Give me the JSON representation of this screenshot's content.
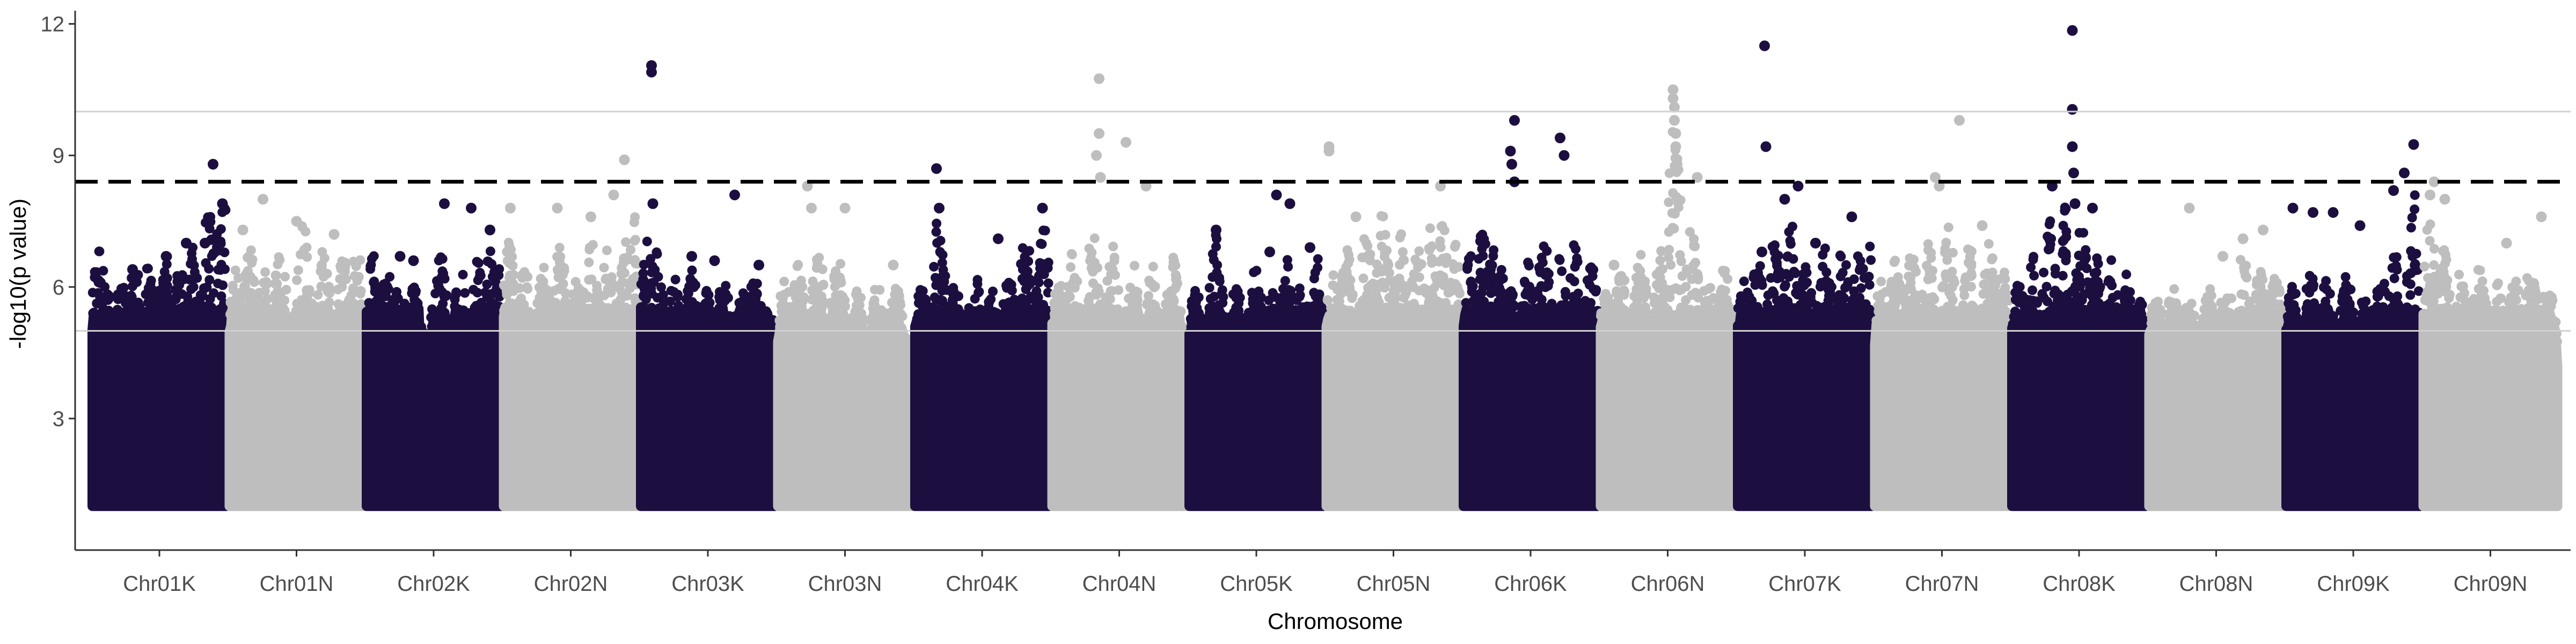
{
  "chart_data": {
    "type": "scatter",
    "subtype": "manhattan",
    "title": "",
    "xlabel": "Chromosome",
    "ylabel": "-log10(p value)",
    "ylim": [
      0,
      12.3
    ],
    "yticks": [
      3,
      6,
      9,
      12
    ],
    "grid": false,
    "legend": "none",
    "colors": {
      "odd": "#1c0f40",
      "even": "#bebebe",
      "threshold_line": "#000000",
      "reference_line": "#d0d0d0",
      "axis": "#333333"
    },
    "thresholds": [
      {
        "name": "significance",
        "y": 8.4,
        "style": "dashed"
      },
      {
        "name": "upper",
        "y": 10.0,
        "style": "solid"
      },
      {
        "name": "lower",
        "y": 5.0,
        "style": "solid"
      }
    ],
    "base_y_min": 1.0,
    "categories": [
      "Chr01K",
      "Chr01N",
      "Chr02K",
      "Chr02N",
      "Chr03K",
      "Chr03N",
      "Chr04K",
      "Chr04N",
      "Chr05K",
      "Chr05N",
      "Chr06K",
      "Chr06N",
      "Chr07K",
      "Chr07N",
      "Chr08K",
      "Chr08N",
      "Chr09K",
      "Chr09N"
    ],
    "series": [
      {
        "chromosome": "Chr01K",
        "color": "odd",
        "peaks": [
          [
            0.05,
            6.9
          ],
          [
            0.12,
            5.9
          ],
          [
            0.22,
            6.2
          ],
          [
            0.32,
            6.6
          ],
          [
            0.42,
            6.5
          ],
          [
            0.55,
            6.9
          ],
          [
            0.66,
            6.6
          ],
          [
            0.76,
            7.0
          ],
          [
            0.86,
            8.1
          ],
          [
            0.92,
            7.3
          ],
          [
            0.98,
            8.3
          ]
        ],
        "outliers": [
          [
            0.06,
            6.1
          ],
          [
            0.12,
            5.8
          ],
          [
            0.3,
            6.4
          ],
          [
            0.46,
            5.9
          ],
          [
            0.55,
            6.7
          ],
          [
            0.7,
            7.0
          ],
          [
            0.84,
            7.0
          ],
          [
            0.9,
            8.8
          ],
          [
            0.97,
            7.9
          ]
        ]
      },
      {
        "chromosome": "Chr01N",
        "color": "even",
        "peaks": [
          [
            0.05,
            6.4
          ],
          [
            0.15,
            7.0
          ],
          [
            0.25,
            6.5
          ],
          [
            0.38,
            6.9
          ],
          [
            0.55,
            7.5
          ],
          [
            0.7,
            6.9
          ],
          [
            0.85,
            6.8
          ],
          [
            0.95,
            7.0
          ]
        ],
        "outliers": [
          [
            0.1,
            7.3
          ],
          [
            0.25,
            8.0
          ],
          [
            0.5,
            7.5
          ],
          [
            0.78,
            7.2
          ]
        ]
      },
      {
        "chromosome": "Chr02K",
        "color": "odd",
        "peaks": [
          [
            0.05,
            6.8
          ],
          [
            0.15,
            6.5
          ],
          [
            0.25,
            6.4
          ],
          [
            0.35,
            6.3
          ],
          [
            0.55,
            7.0
          ],
          [
            0.7,
            6.5
          ],
          [
            0.82,
            6.7
          ],
          [
            0.92,
            7.0
          ],
          [
            0.98,
            6.5
          ]
        ],
        "outliers": [
          [
            0.25,
            6.7
          ],
          [
            0.35,
            6.6
          ],
          [
            0.58,
            7.9
          ],
          [
            0.78,
            7.8
          ],
          [
            0.92,
            7.3
          ]
        ]
      },
      {
        "chromosome": "Chr02N",
        "color": "even",
        "peaks": [
          [
            0.05,
            7.3
          ],
          [
            0.15,
            6.6
          ],
          [
            0.3,
            6.5
          ],
          [
            0.42,
            7.0
          ],
          [
            0.55,
            6.4
          ],
          [
            0.65,
            7.2
          ],
          [
            0.78,
            7.1
          ],
          [
            0.9,
            7.2
          ],
          [
            0.98,
            7.6
          ]
        ],
        "outliers": [
          [
            0.05,
            7.8
          ],
          [
            0.4,
            7.8
          ],
          [
            0.65,
            7.6
          ],
          [
            0.82,
            8.1
          ],
          [
            0.9,
            8.9
          ]
        ]
      },
      {
        "chromosome": "Chr03K",
        "color": "odd",
        "peaks": [
          [
            0.05,
            7.3
          ],
          [
            0.12,
            6.8
          ],
          [
            0.25,
            6.2
          ],
          [
            0.38,
            6.4
          ],
          [
            0.5,
            6.0
          ],
          [
            0.62,
            6.3
          ],
          [
            0.75,
            6.0
          ],
          [
            0.85,
            6.3
          ],
          [
            0.95,
            5.8
          ]
        ],
        "outliers": [
          [
            0.08,
            11.05
          ],
          [
            0.08,
            10.9
          ],
          [
            0.09,
            7.9
          ],
          [
            0.38,
            6.7
          ],
          [
            0.55,
            6.6
          ],
          [
            0.7,
            8.1
          ],
          [
            0.88,
            6.5
          ]
        ]
      },
      {
        "chromosome": "Chr03N",
        "color": "even",
        "peaks": [
          [
            0.05,
            6.3
          ],
          [
            0.15,
            6.6
          ],
          [
            0.3,
            7.0
          ],
          [
            0.45,
            6.8
          ],
          [
            0.6,
            6.0
          ],
          [
            0.75,
            6.3
          ],
          [
            0.88,
            6.1
          ]
        ],
        "outliers": [
          [
            0.22,
            8.3
          ],
          [
            0.25,
            7.8
          ],
          [
            0.5,
            7.8
          ],
          [
            0.86,
            6.5
          ]
        ]
      },
      {
        "chromosome": "Chr04K",
        "color": "odd",
        "peaks": [
          [
            0.05,
            6.0
          ],
          [
            0.18,
            7.8
          ],
          [
            0.3,
            6.1
          ],
          [
            0.45,
            6.3
          ],
          [
            0.58,
            6.0
          ],
          [
            0.7,
            6.3
          ],
          [
            0.82,
            7.5
          ],
          [
            0.96,
            7.8
          ]
        ],
        "outliers": [
          [
            0.16,
            8.7
          ],
          [
            0.18,
            7.8
          ],
          [
            0.62,
            7.1
          ],
          [
            0.95,
            7.8
          ]
        ]
      },
      {
        "chromosome": "Chr04N",
        "color": "even",
        "peaks": [
          [
            0.05,
            6.2
          ],
          [
            0.15,
            6.8
          ],
          [
            0.3,
            7.3
          ],
          [
            0.45,
            7.0
          ],
          [
            0.6,
            6.8
          ],
          [
            0.75,
            6.5
          ],
          [
            0.9,
            6.7
          ]
        ],
        "outliers": [
          [
            0.35,
            10.75
          ],
          [
            0.35,
            9.5
          ],
          [
            0.33,
            9.0
          ],
          [
            0.55,
            9.3
          ],
          [
            0.7,
            8.3
          ],
          [
            0.36,
            8.5
          ]
        ]
      },
      {
        "chromosome": "Chr05K",
        "color": "odd",
        "peaks": [
          [
            0.05,
            6.0
          ],
          [
            0.2,
            7.3
          ],
          [
            0.35,
            6.1
          ],
          [
            0.5,
            6.5
          ],
          [
            0.62,
            6.0
          ],
          [
            0.72,
            6.7
          ],
          [
            0.84,
            6.3
          ],
          [
            0.95,
            6.7
          ]
        ],
        "outliers": [
          [
            0.2,
            7.3
          ],
          [
            0.6,
            6.8
          ],
          [
            0.65,
            8.1
          ],
          [
            0.75,
            7.9
          ],
          [
            0.9,
            6.9
          ]
        ]
      },
      {
        "chromosome": "Chr05N",
        "color": "even",
        "peaks": [
          [
            0.05,
            6.5
          ],
          [
            0.15,
            7.0
          ],
          [
            0.3,
            7.4
          ],
          [
            0.42,
            7.8
          ],
          [
            0.55,
            7.4
          ],
          [
            0.68,
            7.2
          ],
          [
            0.78,
            7.5
          ],
          [
            0.88,
            7.8
          ],
          [
            0.95,
            7.4
          ]
        ],
        "outliers": [
          [
            0.02,
            9.2
          ],
          [
            0.02,
            9.1
          ],
          [
            0.22,
            7.6
          ],
          [
            0.85,
            8.3
          ]
        ]
      },
      {
        "chromosome": "Chr06K",
        "color": "odd",
        "peaks": [
          [
            0.05,
            6.8
          ],
          [
            0.15,
            7.9
          ],
          [
            0.25,
            7.7
          ],
          [
            0.35,
            6.2
          ],
          [
            0.48,
            6.6
          ],
          [
            0.6,
            7.2
          ],
          [
            0.72,
            6.7
          ],
          [
            0.82,
            7.1
          ],
          [
            0.95,
            6.6
          ]
        ],
        "outliers": [
          [
            0.38,
            9.8
          ],
          [
            0.35,
            9.1
          ],
          [
            0.36,
            8.8
          ],
          [
            0.38,
            8.4
          ],
          [
            0.72,
            9.4
          ],
          [
            0.75,
            9.0
          ],
          [
            0.2,
            6.4
          ]
        ]
      },
      {
        "chromosome": "Chr06N",
        "color": "even",
        "peaks": [
          [
            0.05,
            6.0
          ],
          [
            0.15,
            6.5
          ],
          [
            0.3,
            6.8
          ],
          [
            0.45,
            6.9
          ],
          [
            0.55,
            10.4
          ],
          [
            0.68,
            7.5
          ],
          [
            0.8,
            6.4
          ],
          [
            0.92,
            6.5
          ]
        ],
        "outliers": [
          [
            0.54,
            10.5
          ],
          [
            0.54,
            10.3
          ],
          [
            0.55,
            10.1
          ],
          [
            0.55,
            9.8
          ],
          [
            0.56,
            9.5
          ],
          [
            0.56,
            9.2
          ],
          [
            0.57,
            8.8
          ],
          [
            0.72,
            8.5
          ],
          [
            0.1,
            6.5
          ]
        ]
      },
      {
        "chromosome": "Chr07K",
        "color": "odd",
        "peaks": [
          [
            0.05,
            6.3
          ],
          [
            0.15,
            6.7
          ],
          [
            0.28,
            7.2
          ],
          [
            0.4,
            7.5
          ],
          [
            0.52,
            6.8
          ],
          [
            0.65,
            7.2
          ],
          [
            0.78,
            7.0
          ],
          [
            0.9,
            6.8
          ],
          [
            0.97,
            7.8
          ]
        ],
        "outliers": [
          [
            0.2,
            11.5
          ],
          [
            0.21,
            9.2
          ],
          [
            0.18,
            6.8
          ],
          [
            0.35,
            8.0
          ],
          [
            0.45,
            8.3
          ],
          [
            0.58,
            7.0
          ],
          [
            0.85,
            7.6
          ]
        ]
      },
      {
        "chromosome": "Chr07N",
        "color": "even",
        "peaks": [
          [
            0.05,
            6.3
          ],
          [
            0.15,
            6.7
          ],
          [
            0.28,
            7.0
          ],
          [
            0.4,
            7.1
          ],
          [
            0.55,
            7.5
          ],
          [
            0.7,
            7.2
          ],
          [
            0.85,
            7.3
          ],
          [
            0.95,
            6.6
          ]
        ],
        "outliers": [
          [
            0.45,
            8.5
          ],
          [
            0.48,
            8.3
          ],
          [
            0.63,
            9.8
          ],
          [
            0.8,
            7.4
          ]
        ]
      },
      {
        "chromosome": "Chr08K",
        "color": "odd",
        "peaks": [
          [
            0.05,
            6.1
          ],
          [
            0.15,
            6.8
          ],
          [
            0.28,
            7.6
          ],
          [
            0.4,
            7.9
          ],
          [
            0.52,
            7.5
          ],
          [
            0.62,
            6.8
          ],
          [
            0.75,
            6.7
          ],
          [
            0.85,
            6.3
          ],
          [
            0.95,
            5.9
          ]
        ],
        "outliers": [
          [
            0.45,
            11.85
          ],
          [
            0.45,
            10.05
          ],
          [
            0.45,
            9.2
          ],
          [
            0.46,
            8.6
          ],
          [
            0.47,
            7.9
          ],
          [
            0.6,
            7.8
          ],
          [
            0.3,
            8.3
          ]
        ]
      },
      {
        "chromosome": "Chr08N",
        "color": "even",
        "peaks": [
          [
            0.05,
            5.8
          ],
          [
            0.18,
            6.0
          ],
          [
            0.3,
            5.7
          ],
          [
            0.45,
            6.0
          ],
          [
            0.58,
            6.3
          ],
          [
            0.7,
            6.8
          ],
          [
            0.82,
            6.5
          ],
          [
            0.95,
            6.4
          ]
        ],
        "outliers": [
          [
            0.3,
            7.8
          ],
          [
            0.55,
            6.7
          ],
          [
            0.7,
            7.1
          ],
          [
            0.85,
            7.3
          ]
        ]
      },
      {
        "chromosome": "Chr09K",
        "color": "odd",
        "peaks": [
          [
            0.05,
            6.1
          ],
          [
            0.18,
            6.4
          ],
          [
            0.3,
            6.2
          ],
          [
            0.45,
            6.3
          ],
          [
            0.58,
            5.8
          ],
          [
            0.7,
            6.5
          ],
          [
            0.82,
            7.0
          ],
          [
            0.95,
            8.2
          ]
        ],
        "outliers": [
          [
            0.05,
            7.8
          ],
          [
            0.2,
            7.7
          ],
          [
            0.35,
            7.7
          ],
          [
            0.55,
            7.4
          ],
          [
            0.8,
            8.2
          ],
          [
            0.88,
            8.6
          ],
          [
            0.95,
            9.25
          ]
        ]
      },
      {
        "chromosome": "Chr09N",
        "color": "even",
        "peaks": [
          [
            0.05,
            7.8
          ],
          [
            0.15,
            7.0
          ],
          [
            0.28,
            6.4
          ],
          [
            0.42,
            6.5
          ],
          [
            0.55,
            6.2
          ],
          [
            0.68,
            6.4
          ],
          [
            0.8,
            6.6
          ],
          [
            0.92,
            6.6
          ]
        ],
        "outliers": [
          [
            0.08,
            8.4
          ],
          [
            0.05,
            8.1
          ],
          [
            0.16,
            8.0
          ],
          [
            0.62,
            7.0
          ],
          [
            0.88,
            7.6
          ]
        ]
      }
    ]
  }
}
